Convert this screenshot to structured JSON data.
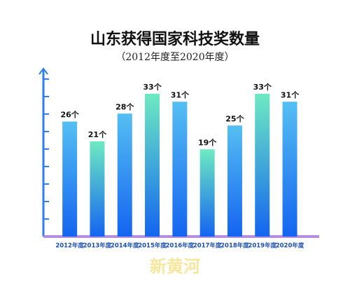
{
  "chart_data": {
    "type": "bar",
    "title": "山东获得国家科技奖数量",
    "subtitle": "（2012年度至2020年度）",
    "categories": [
      "2012年度",
      "2013年度",
      "2014年度",
      "2015年度",
      "2016年度",
      "2017年度",
      "2018年度",
      "2019年度",
      "2020年度"
    ],
    "values": [
      26,
      21,
      28,
      33,
      31,
      19,
      25,
      33,
      31
    ],
    "value_labels": [
      "26个",
      "21个",
      "28个",
      "33个",
      "31个",
      "19个",
      "25个",
      "33个",
      "31个"
    ],
    "colors": [
      "#55bff2",
      "#6eeac2",
      "#55bff2",
      "#6eeac2",
      "#55bff2",
      "#6eeac2",
      "#55bff2",
      "#6eeac2",
      "#55bff2"
    ],
    "base_color": "#1464f0",
    "ylim": [
      -3,
      39
    ],
    "watermark": "新黄河"
  }
}
